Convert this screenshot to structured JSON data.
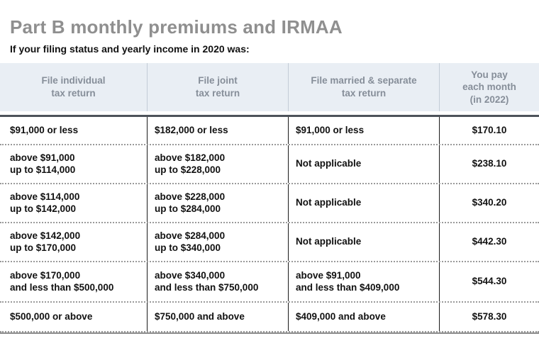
{
  "page": {
    "title": "Part B monthly premiums and IRMAA",
    "subtitle": "If your filing status and yearly income in 2020 was:"
  },
  "table": {
    "headers": [
      "File individual\ntax return",
      "File joint\ntax return",
      "File married & separate\ntax return",
      "You pay\neach month\n(in 2022)"
    ],
    "rows": [
      [
        "$91,000 or less",
        "$182,000 or less",
        "$91,000 or less",
        "$170.10"
      ],
      [
        "above $91,000\nup to $114,000",
        "above $182,000\nup to $228,000",
        "Not applicable",
        "$238.10"
      ],
      [
        "above $114,000\nup to $142,000",
        "above $228,000\nup to $284,000",
        "Not applicable",
        "$340.20"
      ],
      [
        "above $142,000\nup to $170,000",
        "above $284,000\nup to $340,000",
        "Not applicable",
        "$442.30"
      ],
      [
        "above $170,000\nand less than $500,000",
        "above $340,000\nand less than $750,000",
        "above $91,000\nand less than $409,000",
        "$544.30"
      ],
      [
        "$500,000 or above",
        "$750,000 and above",
        "$409,000 and above",
        "$578.30"
      ]
    ]
  },
  "colors": {
    "header_bg": "#e9eef4",
    "header_text": "#868e99",
    "title_text": "#8f8f8f",
    "body_text": "#111111",
    "rule_dark": "#4d525a",
    "rule_bottom": "#8c8c8c",
    "column_divider_dark": "#1a1a1a",
    "column_divider_light": "#c3ccd6",
    "dotted_separator": "#9a9a9a"
  }
}
